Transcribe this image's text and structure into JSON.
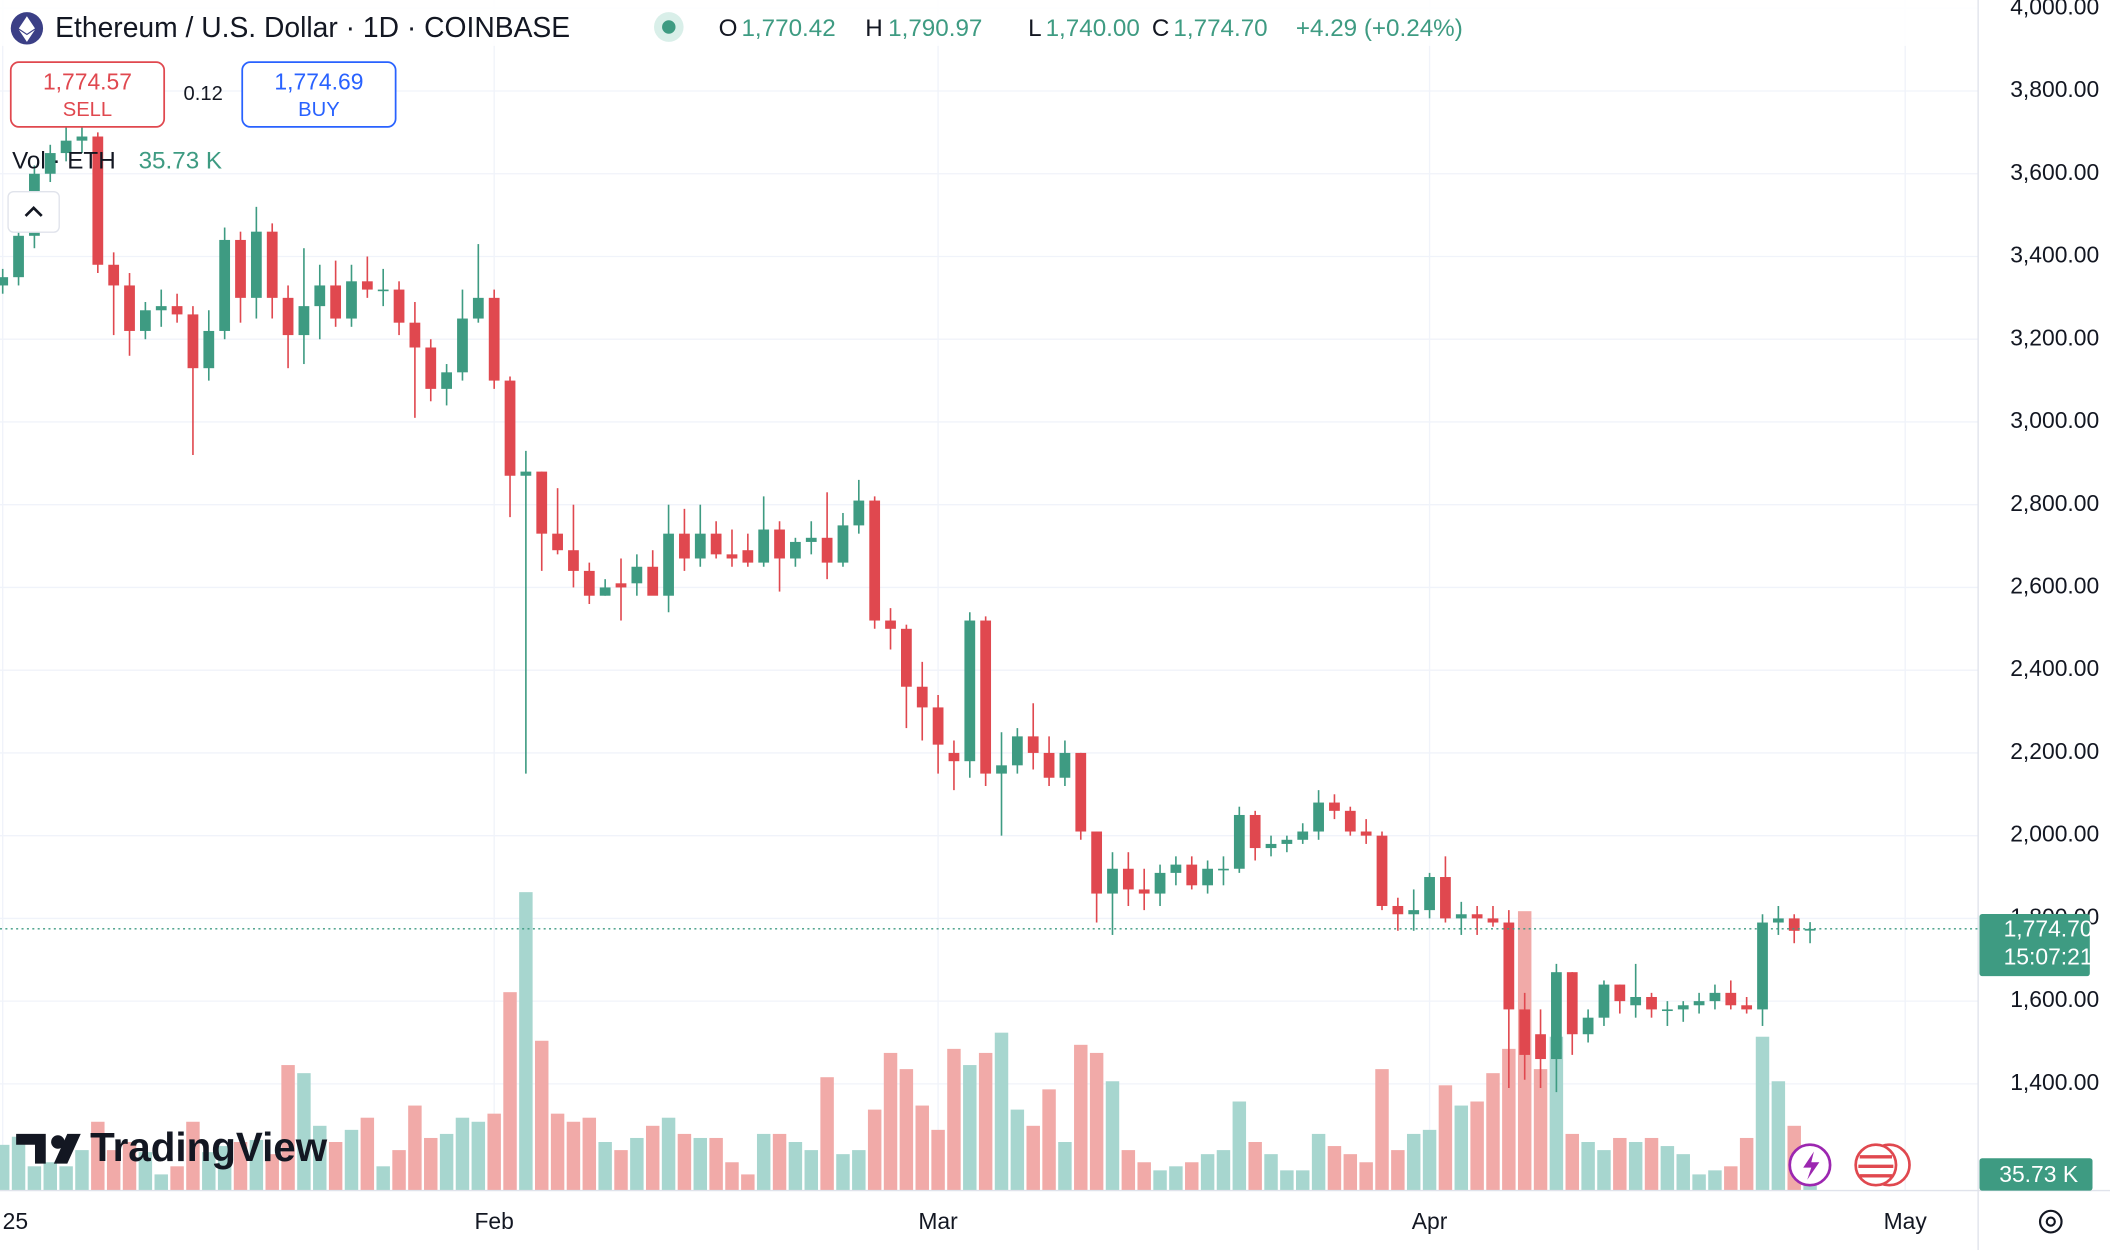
{
  "header": {
    "symbol": "Ethereum / U.S. Dollar · 1D · COINBASE",
    "open_label": "O",
    "open": "1,770.42",
    "high_label": "H",
    "high": "1,790.97",
    "low_label": "L",
    "low": "1,740.00",
    "close_label": "C",
    "close": "1,774.70",
    "change": "+4.29 (+0.24%)",
    "sell_price": "1,774.57",
    "sell": "SELL",
    "spread": "0.12",
    "buy_price": "1,774.69",
    "buy": "BUY",
    "volume_label": "Vol · ETH",
    "volume_value": "35.73 K",
    "logo": "TradingView",
    "last_price": "1,774.70",
    "countdown": "15:07:21",
    "volume_tag": "35.73 K"
  },
  "chart_data": {
    "type": "candlestick",
    "up_color": "#3e9b82",
    "down_color": "#e0484f",
    "volume_up_color": "#a7d6cf",
    "volume_down_color": "#f1aaa8",
    "grid": true,
    "ylim": [
      1142,
      4020
    ],
    "yticks": [
      {
        "value": 1400,
        "label": "1,400.00"
      },
      {
        "value": 1600,
        "label": "1,600.00"
      },
      {
        "value": 1800,
        "label": "1,800.00"
      },
      {
        "value": 2000,
        "label": "2,000.00"
      },
      {
        "value": 2200,
        "label": "2,200.00"
      },
      {
        "value": 2400,
        "label": "2,400.00"
      },
      {
        "value": 2600,
        "label": "2,600.00"
      },
      {
        "value": 2800,
        "label": "2,800.00"
      },
      {
        "value": 3000,
        "label": "3,000.00"
      },
      {
        "value": 3200,
        "label": "3,200.00"
      },
      {
        "value": 3400,
        "label": "3,400.00"
      },
      {
        "value": 3600,
        "label": "3,600.00"
      },
      {
        "value": 3800,
        "label": "3,800.00"
      },
      {
        "value": 4000,
        "label": "4,000.00"
      }
    ],
    "xlim": [
      -0.17,
      124.6
    ],
    "xticks": [
      {
        "value": 0,
        "label": "25"
      },
      {
        "value": 31,
        "label": "Feb"
      },
      {
        "value": 59,
        "label": "Mar"
      },
      {
        "value": 90,
        "label": "Apr"
      },
      {
        "value": 120,
        "label": "May"
      }
    ],
    "volume_lim": [
      0,
      1000
    ],
    "open": [
      3330,
      3350,
      3450,
      3600,
      3650,
      3680,
      3690,
      3380,
      3330,
      3220,
      3270,
      3280,
      3260,
      3130,
      3220,
      3440,
      3300,
      3460,
      3300,
      3210,
      3280,
      3330,
      3250,
      3340,
      3320,
      3320,
      3240,
      3180,
      3080,
      3120,
      3250,
      3300,
      3100,
      2870,
      2880,
      2730,
      2690,
      2640,
      2580,
      2610,
      2610,
      2650,
      2580,
      2730,
      2670,
      2730,
      2680,
      2690,
      2660,
      2740,
      2670,
      2710,
      2720,
      2660,
      2750,
      2810,
      2520,
      2500,
      2360,
      2310,
      2200,
      2180,
      2520,
      2150,
      2170,
      2240,
      2200,
      2140,
      2200,
      2010,
      1860,
      1920,
      1870,
      1860,
      1910,
      1930,
      1880,
      1920,
      1920,
      2050,
      1970,
      1980,
      1990,
      2010,
      2080,
      2060,
      2010,
      2000,
      1830,
      1810,
      1820,
      1900,
      1800,
      1810,
      1800,
      1790,
      1580,
      1520,
      1460,
      1670,
      1520,
      1560,
      1640,
      1590,
      1610,
      1580,
      1580,
      1590,
      1600,
      1620,
      1590,
      1580,
      1790,
      1800,
      1770.42
    ],
    "high": [
      3370,
      3480,
      3620,
      3670,
      3720,
      3740,
      3700,
      3410,
      3360,
      3290,
      3320,
      3310,
      3280,
      3270,
      3470,
      3460,
      3520,
      3480,
      3330,
      3420,
      3380,
      3390,
      3380,
      3400,
      3370,
      3340,
      3290,
      3200,
      3140,
      3320,
      3430,
      3320,
      3110,
      2930,
      2880,
      2840,
      2800,
      2660,
      2620,
      2670,
      2680,
      2690,
      2800,
      2790,
      2800,
      2760,
      2740,
      2730,
      2820,
      2760,
      2720,
      2760,
      2830,
      2780,
      2860,
      2820,
      2550,
      2510,
      2420,
      2340,
      2230,
      2540,
      2530,
      2250,
      2260,
      2320,
      2240,
      2230,
      2200,
      2010,
      1960,
      1960,
      1920,
      1930,
      1950,
      1950,
      1940,
      1950,
      2070,
      2060,
      2000,
      2000,
      2030,
      2110,
      2100,
      2070,
      2040,
      2010,
      1850,
      1870,
      1910,
      1950,
      1840,
      1830,
      1830,
      1820,
      1620,
      1580,
      1690,
      1670,
      1580,
      1650,
      1640,
      1690,
      1620,
      1600,
      1600,
      1620,
      1640,
      1650,
      1610,
      1810,
      1830,
      1810,
      1790.97
    ],
    "low": [
      3310,
      3330,
      3420,
      3580,
      3630,
      3650,
      3360,
      3210,
      3160,
      3200,
      3230,
      3240,
      2920,
      3100,
      3200,
      3240,
      3250,
      3250,
      3130,
      3140,
      3200,
      3230,
      3230,
      3300,
      3280,
      3210,
      3010,
      3050,
      3040,
      3100,
      3240,
      3080,
      2770,
      2150,
      2640,
      2680,
      2600,
      2560,
      2580,
      2520,
      2580,
      2590,
      2540,
      2640,
      2650,
      2670,
      2650,
      2650,
      2650,
      2590,
      2650,
      2680,
      2620,
      2650,
      2730,
      2500,
      2450,
      2260,
      2230,
      2150,
      2110,
      2140,
      2120,
      2000,
      2150,
      2160,
      2120,
      2120,
      1990,
      1790,
      1760,
      1830,
      1820,
      1830,
      1880,
      1870,
      1860,
      1880,
      1910,
      1940,
      1950,
      1960,
      1980,
      1990,
      2040,
      2000,
      1980,
      1820,
      1770,
      1770,
      1800,
      1790,
      1760,
      1760,
      1780,
      1390,
      1410,
      1390,
      1380,
      1470,
      1500,
      1540,
      1570,
      1560,
      1560,
      1540,
      1550,
      1570,
      1580,
      1580,
      1570,
      1540,
      1760,
      1740,
      1740.0
    ],
    "close": [
      3350,
      3450,
      3600,
      3650,
      3680,
      3690,
      3380,
      3330,
      3220,
      3270,
      3280,
      3260,
      3130,
      3220,
      3440,
      3300,
      3460,
      3300,
      3210,
      3280,
      3330,
      3250,
      3340,
      3320,
      3320,
      3240,
      3180,
      3080,
      3120,
      3250,
      3300,
      3100,
      2870,
      2880,
      2730,
      2690,
      2640,
      2580,
      2600,
      2600,
      2650,
      2580,
      2730,
      2670,
      2730,
      2680,
      2670,
      2660,
      2740,
      2670,
      2710,
      2720,
      2660,
      2750,
      2810,
      2520,
      2500,
      2360,
      2310,
      2220,
      2180,
      2520,
      2150,
      2170,
      2240,
      2200,
      2140,
      2200,
      2010,
      1860,
      1920,
      1870,
      1860,
      1910,
      1930,
      1880,
      1920,
      1920,
      2050,
      1970,
      1980,
      1990,
      2010,
      2080,
      2060,
      2010,
      2000,
      1830,
      1810,
      1820,
      1900,
      1800,
      1810,
      1800,
      1790,
      1580,
      1470,
      1460,
      1670,
      1520,
      1560,
      1640,
      1600,
      1610,
      1580,
      1580,
      1590,
      1600,
      1620,
      1590,
      1580,
      1790,
      1800,
      1770,
      1774.7
    ],
    "volume": [
      113,
      133,
      60,
      70,
      60,
      100,
      170,
      100,
      120,
      95,
      40,
      60,
      170,
      95,
      110,
      120,
      125,
      90,
      310,
      290,
      160,
      120,
      150,
      180,
      60,
      100,
      210,
      130,
      140,
      180,
      170,
      190,
      490,
      737,
      370,
      190,
      170,
      180,
      120,
      100,
      130,
      160,
      180,
      140,
      130,
      130,
      70,
      40,
      140,
      140,
      120,
      100,
      280,
      90,
      100,
      200,
      340,
      300,
      210,
      150,
      350,
      310,
      340,
      390,
      200,
      160,
      250,
      120,
      360,
      340,
      270,
      100,
      70,
      50,
      60,
      70,
      90,
      100,
      220,
      120,
      90,
      50,
      50,
      140,
      110,
      90,
      70,
      300,
      100,
      140,
      150,
      260,
      210,
      220,
      290,
      350,
      690,
      300,
      380,
      140,
      120,
      100,
      130,
      120,
      130,
      110,
      90,
      40,
      50,
      60,
      130,
      380,
      270,
      160,
      36
    ]
  }
}
